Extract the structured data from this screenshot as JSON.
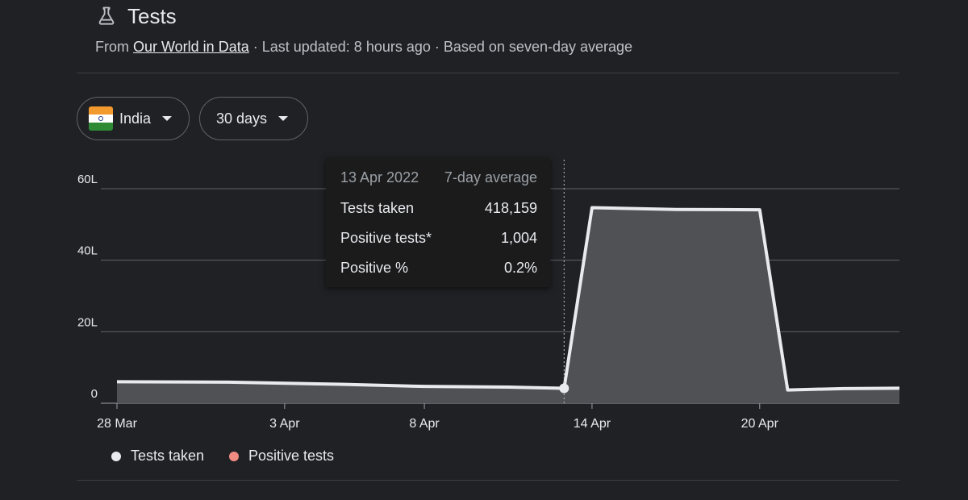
{
  "header": {
    "title": "Tests",
    "icon": "flask-icon",
    "source_prefix": "From ",
    "source_link": "Our World in Data",
    "source_suffix": " · Last updated: 8 hours ago · Based on seven-day average"
  },
  "filters": {
    "country": "India",
    "range": "30 days"
  },
  "tooltip": {
    "date": "13 Apr 2022",
    "mode": "7-day average",
    "rows": [
      {
        "label": "Tests taken",
        "value": "418,159"
      },
      {
        "label": "Positive tests*",
        "value": "1,004"
      },
      {
        "label": "Positive %",
        "value": "0.2%"
      }
    ]
  },
  "legend": [
    {
      "label": "Tests taken",
      "color": "#e8eaed"
    },
    {
      "label": "Positive tests",
      "color": "#f28b82"
    }
  ],
  "colors": {
    "line": "#e8eaed",
    "area": "#505155",
    "grid": "#5f6368",
    "background": "#202124"
  },
  "chart_data": {
    "type": "area",
    "title": "",
    "xlabel": "",
    "ylabel": "",
    "x_ticks": [
      {
        "label": "28 Mar",
        "day": 0
      },
      {
        "label": "3 Apr",
        "day": 6
      },
      {
        "label": "8 Apr",
        "day": 11
      },
      {
        "label": "14 Apr",
        "day": 17
      },
      {
        "label": "20 Apr",
        "day": 23
      }
    ],
    "y_ticks": [
      "0",
      "20L",
      "40L",
      "60L"
    ],
    "ylim": [
      0,
      6000000
    ],
    "xlim": [
      0,
      28
    ],
    "highlight_day": 16,
    "series": [
      {
        "name": "Tests taken",
        "points": [
          [
            0,
            600000
          ],
          [
            4,
            590000
          ],
          [
            8,
            530000
          ],
          [
            11,
            470000
          ],
          [
            14,
            450000
          ],
          [
            16,
            418159
          ],
          [
            17,
            5470000
          ],
          [
            20,
            5420000
          ],
          [
            23,
            5410000
          ],
          [
            24,
            370000
          ],
          [
            26,
            410000
          ],
          [
            28,
            420000
          ]
        ]
      }
    ]
  }
}
